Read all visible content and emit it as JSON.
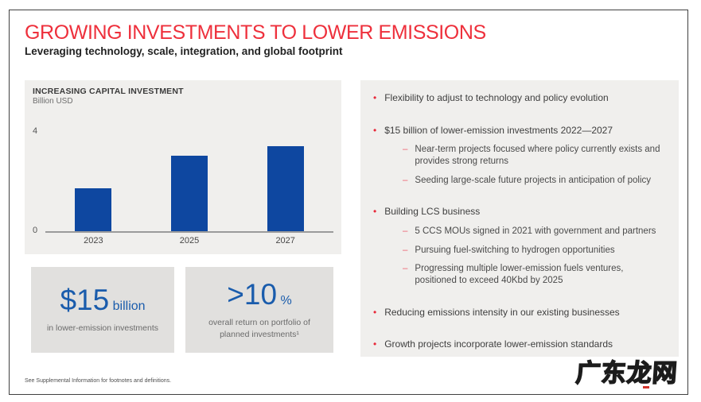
{
  "slide": {
    "title": "GROWING INVESTMENTS TO LOWER EMISSIONS",
    "subtitle": "Leveraging technology, scale, integration, and global footprint",
    "footnote": "See Supplemental Information for footnotes and definitions.",
    "watermark": "广东龙网"
  },
  "colors": {
    "accent_red": "#ee303c",
    "bullet_red": "#e8293a",
    "sub_dash_pink": "#ed5f6e",
    "bar_blue": "#0e47a0",
    "stat_blue": "#1a5cac",
    "panel_gray": "#f0efed",
    "stat_box_gray": "#e1e0de",
    "frame_border": "#404040"
  },
  "chart_data": {
    "type": "bar",
    "title": "INCREASING CAPITAL INVESTMENT",
    "subtitle": "Billion USD",
    "categories": [
      "2023",
      "2025",
      "2027"
    ],
    "values": [
      1.7,
      3.0,
      3.4
    ],
    "ylim": [
      0,
      4
    ],
    "ytick_labels": [
      "0",
      "4"
    ],
    "xlabel": "",
    "ylabel": "Billion USD",
    "grid": false,
    "legend": "none",
    "bar_color": "#0e47a0"
  },
  "stats": [
    {
      "value": "$15",
      "unit": "billion",
      "caption": "in lower-emission investments"
    },
    {
      "value": ">10",
      "unit": "%",
      "caption": "overall return on portfolio of planned investments¹"
    }
  ],
  "bullets": [
    {
      "text": "Flexibility to adjust to technology and policy evolution",
      "sub": []
    },
    {
      "text": "$15 billion of lower-emission investments 2022—2027",
      "sub": [
        "Near-term projects focused where policy currently exists and provides strong returns",
        "Seeding large-scale future projects in anticipation of policy"
      ]
    },
    {
      "text": "Building LCS business",
      "sub": [
        "5 CCS MOUs signed in 2021 with government and partners",
        "Pursuing fuel-switching to hydrogen opportunities",
        "Progressing multiple lower-emission fuels ventures, positioned to exceed 40Kbd by 2025"
      ]
    },
    {
      "text": "Reducing emissions intensity in our existing businesses",
      "sub": []
    },
    {
      "text": "Growth projects incorporate lower-emission standards",
      "sub": []
    }
  ]
}
